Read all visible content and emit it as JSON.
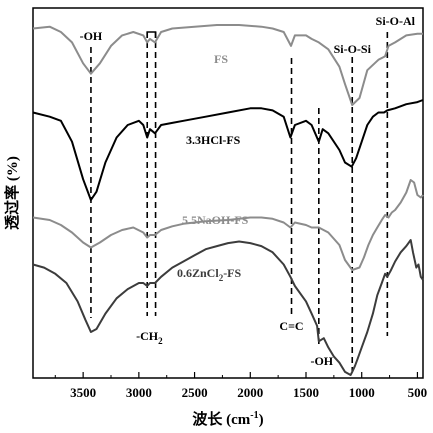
{
  "chart_data": {
    "type": "line",
    "xlabel": "波长 (cm",
    "xlabel_sup": "-1",
    "xlabel_end": ")",
    "ylabel": "透过率 (%)",
    "xlim": [
      3950,
      450
    ],
    "x_reversed": true,
    "ylim": [
      0,
      100
    ],
    "yticks_shown": false,
    "grid": false,
    "xticks": [
      3500,
      3000,
      2500,
      2000,
      1500,
      1000,
      500
    ],
    "xtick_labels": [
      "3500",
      "3000",
      "2500",
      "2000",
      "1500",
      "1000",
      "500"
    ],
    "bands": [
      {
        "label": "-OH",
        "x": 3430,
        "label_position": "top",
        "style": "dashed"
      },
      {
        "label": "-CH",
        "sub": "2",
        "x_range": [
          2925,
          2850
        ],
        "label_position": "bottom",
        "style": "dashed-bracket"
      },
      {
        "label": "C=C",
        "x": 1630,
        "label_position": "bottom",
        "style": "dashed"
      },
      {
        "label": "-OH",
        "x": 1385,
        "label_position": "bottom",
        "style": "dashed"
      },
      {
        "label": "Si-O-Si",
        "x": 1085,
        "label_position": "top",
        "style": "dashed"
      },
      {
        "label": "Si-O-Al",
        "x": 770,
        "label_position": "top",
        "style": "dashed"
      }
    ],
    "series": [
      {
        "name": "FS",
        "color": "#8c8c8c",
        "points": [
          [
            3950,
            88
          ],
          [
            3800,
            88.5
          ],
          [
            3700,
            87
          ],
          [
            3600,
            84
          ],
          [
            3500,
            78
          ],
          [
            3430,
            75
          ],
          [
            3350,
            78
          ],
          [
            3250,
            83
          ],
          [
            3150,
            86
          ],
          [
            3050,
            87
          ],
          [
            2960,
            86
          ],
          [
            2925,
            84
          ],
          [
            2900,
            85
          ],
          [
            2855,
            84
          ],
          [
            2800,
            87
          ],
          [
            2700,
            88
          ],
          [
            2500,
            88.5
          ],
          [
            2300,
            89
          ],
          [
            2100,
            89
          ],
          [
            1900,
            88.5
          ],
          [
            1800,
            88
          ],
          [
            1700,
            87
          ],
          [
            1635,
            83
          ],
          [
            1600,
            86
          ],
          [
            1500,
            86
          ],
          [
            1450,
            85
          ],
          [
            1385,
            84
          ],
          [
            1300,
            82
          ],
          [
            1200,
            77
          ],
          [
            1150,
            72
          ],
          [
            1085,
            66
          ],
          [
            1020,
            68
          ],
          [
            950,
            76
          ],
          [
            850,
            79
          ],
          [
            790,
            80
          ],
          [
            760,
            83
          ],
          [
            700,
            84
          ],
          [
            600,
            86
          ],
          [
            500,
            86.5
          ],
          [
            450,
            86.5
          ]
        ]
      },
      {
        "name": "3.3HCl-FS",
        "sub": "",
        "color": "#000000",
        "points": [
          [
            3950,
            70
          ],
          [
            3800,
            69
          ],
          [
            3700,
            68
          ],
          [
            3600,
            63
          ],
          [
            3500,
            54
          ],
          [
            3430,
            49
          ],
          [
            3380,
            51
          ],
          [
            3300,
            58
          ],
          [
            3200,
            64
          ],
          [
            3100,
            67
          ],
          [
            3000,
            68
          ],
          [
            2960,
            67
          ],
          [
            2925,
            64
          ],
          [
            2900,
            66
          ],
          [
            2855,
            65
          ],
          [
            2800,
            67
          ],
          [
            2700,
            67.5
          ],
          [
            2600,
            68
          ],
          [
            2400,
            69
          ],
          [
            2200,
            70
          ],
          [
            2000,
            71
          ],
          [
            1900,
            71
          ],
          [
            1800,
            70.5
          ],
          [
            1700,
            69
          ],
          [
            1640,
            64
          ],
          [
            1600,
            67
          ],
          [
            1500,
            68
          ],
          [
            1450,
            67
          ],
          [
            1385,
            63
          ],
          [
            1350,
            66
          ],
          [
            1300,
            65
          ],
          [
            1200,
            61
          ],
          [
            1150,
            58
          ],
          [
            1090,
            57
          ],
          [
            1050,
            59
          ],
          [
            1000,
            63
          ],
          [
            950,
            67
          ],
          [
            900,
            69
          ],
          [
            850,
            70
          ],
          [
            800,
            70
          ],
          [
            770,
            70.5
          ],
          [
            700,
            71
          ],
          [
            600,
            72
          ],
          [
            500,
            72.5
          ],
          [
            450,
            73
          ]
        ]
      },
      {
        "name": "5.5NaOH-FS",
        "sub": "",
        "color": "#8c8c8c",
        "points": [
          [
            3950,
            47
          ],
          [
            3800,
            46
          ],
          [
            3700,
            44
          ],
          [
            3600,
            41
          ],
          [
            3500,
            37
          ],
          [
            3430,
            35
          ],
          [
            3350,
            37
          ],
          [
            3250,
            40
          ],
          [
            3150,
            42
          ],
          [
            3050,
            43
          ],
          [
            2960,
            41
          ],
          [
            2925,
            39
          ],
          [
            2900,
            40
          ],
          [
            2855,
            40
          ],
          [
            2800,
            42
          ],
          [
            2700,
            43.5
          ],
          [
            2600,
            44.5
          ],
          [
            2400,
            45.5
          ],
          [
            2200,
            46
          ],
          [
            2000,
            47
          ],
          [
            1900,
            47
          ],
          [
            1800,
            46.5
          ],
          [
            1700,
            45
          ],
          [
            1640,
            43
          ],
          [
            1600,
            45
          ],
          [
            1500,
            44
          ],
          [
            1450,
            43
          ],
          [
            1385,
            43
          ],
          [
            1300,
            41
          ],
          [
            1200,
            36
          ],
          [
            1150,
            30
          ],
          [
            1085,
            26
          ],
          [
            1020,
            27
          ],
          [
            980,
            31
          ],
          [
            940,
            36
          ],
          [
            900,
            40
          ],
          [
            860,
            43
          ],
          [
            820,
            46
          ],
          [
            790,
            48
          ],
          [
            760,
            47
          ],
          [
            730,
            49
          ],
          [
            700,
            50
          ],
          [
            650,
            53
          ],
          [
            600,
            57
          ],
          [
            560,
            62
          ],
          [
            530,
            61
          ],
          [
            500,
            56
          ],
          [
            470,
            55
          ],
          [
            450,
            56
          ]
        ]
      },
      {
        "name": "0.6ZnCl",
        "sub": "2",
        "suffix": "-FS",
        "color": "#3c3c3c",
        "points": [
          [
            3950,
            36
          ],
          [
            3850,
            35
          ],
          [
            3750,
            33
          ],
          [
            3650,
            30
          ],
          [
            3550,
            24
          ],
          [
            3480,
            18
          ],
          [
            3430,
            14
          ],
          [
            3380,
            15
          ],
          [
            3300,
            20
          ],
          [
            3200,
            25
          ],
          [
            3100,
            28
          ],
          [
            3000,
            30
          ],
          [
            2960,
            30
          ],
          [
            2925,
            29
          ],
          [
            2900,
            30
          ],
          [
            2855,
            30
          ],
          [
            2800,
            32
          ],
          [
            2700,
            35
          ],
          [
            2600,
            37
          ],
          [
            2500,
            39
          ],
          [
            2400,
            41
          ],
          [
            2300,
            42
          ],
          [
            2200,
            43
          ],
          [
            2100,
            43.5
          ],
          [
            2000,
            43
          ],
          [
            1900,
            42
          ],
          [
            1800,
            40
          ],
          [
            1700,
            36
          ],
          [
            1640,
            32
          ],
          [
            1600,
            29
          ],
          [
            1500,
            24
          ],
          [
            1450,
            20
          ],
          [
            1400,
            16
          ],
          [
            1385,
            11
          ],
          [
            1340,
            12
          ],
          [
            1300,
            9
          ],
          [
            1250,
            6
          ],
          [
            1200,
            4
          ],
          [
            1150,
            1
          ],
          [
            1100,
            0
          ],
          [
            1085,
            1
          ],
          [
            1060,
            3
          ],
          [
            1040,
            5
          ],
          [
            1000,
            9
          ],
          [
            950,
            14
          ],
          [
            900,
            20
          ],
          [
            860,
            26
          ],
          [
            820,
            30
          ],
          [
            790,
            33
          ],
          [
            770,
            32
          ],
          [
            740,
            34
          ],
          [
            700,
            37
          ],
          [
            650,
            40
          ],
          [
            600,
            42
          ],
          [
            560,
            44
          ],
          [
            540,
            40
          ],
          [
            510,
            35
          ],
          [
            490,
            36
          ],
          [
            470,
            32
          ],
          [
            450,
            31
          ]
        ]
      }
    ]
  }
}
